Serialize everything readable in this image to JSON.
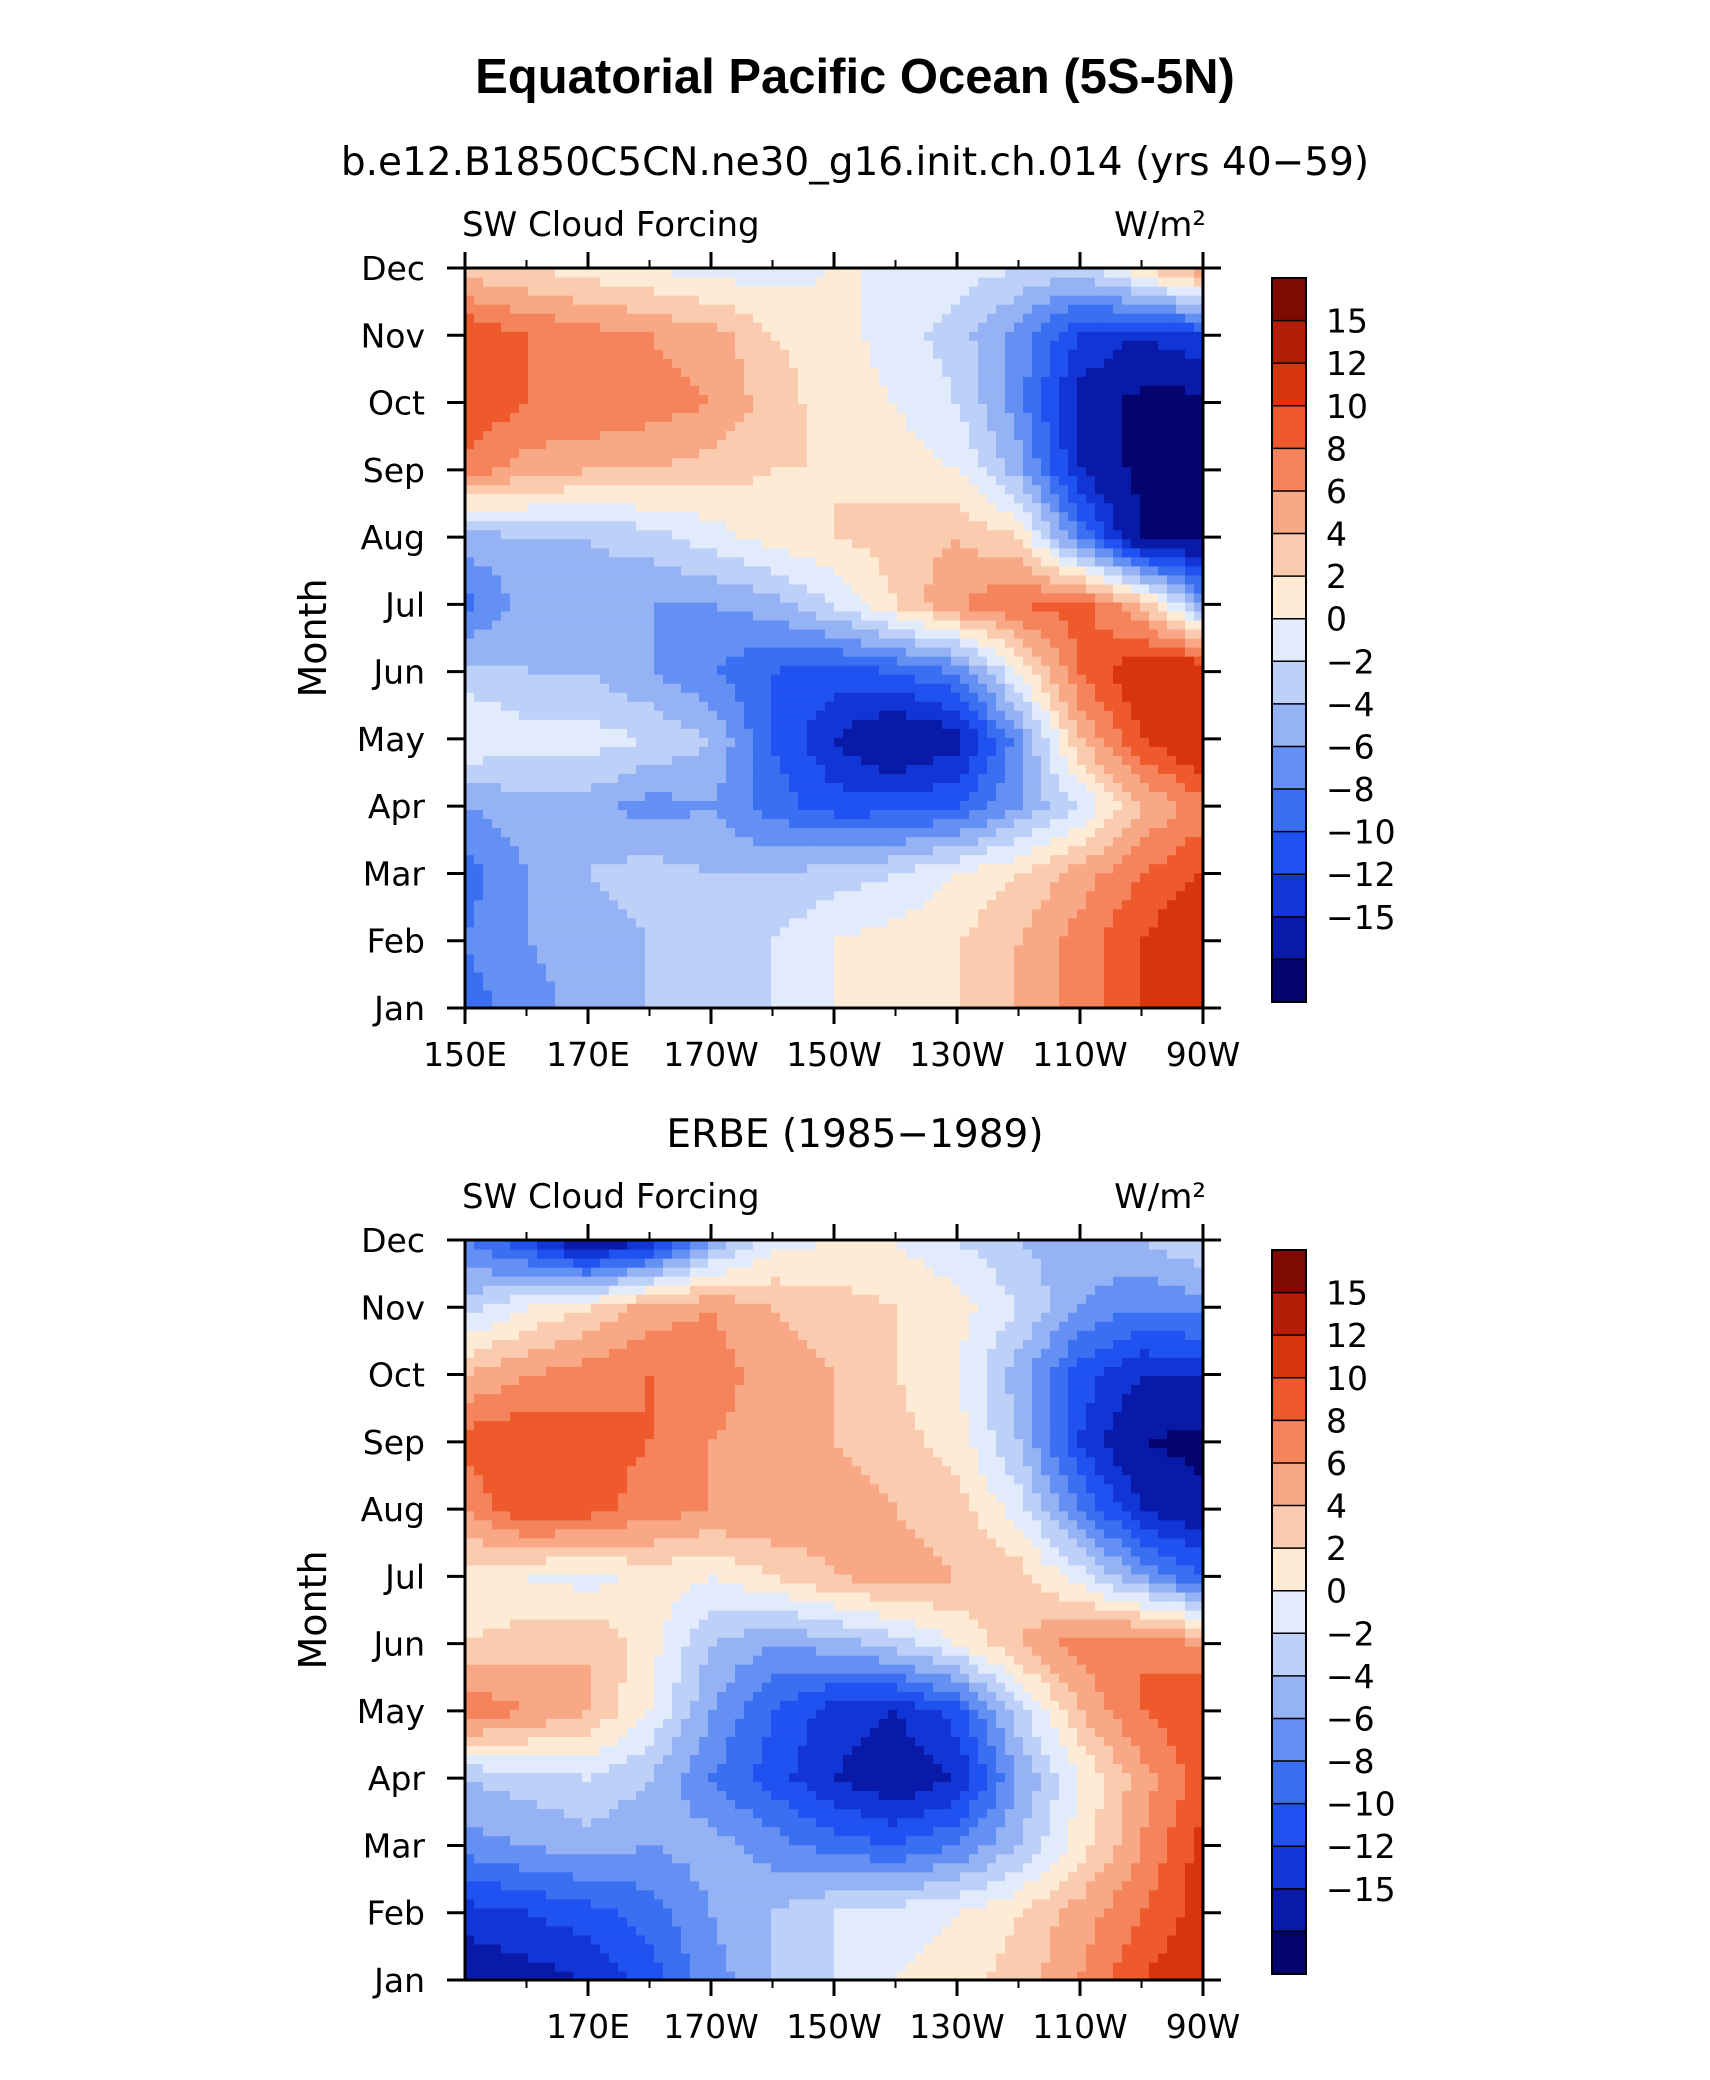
{
  "figure": {
    "title": "Equatorial Pacific Ocean (5S-5N)",
    "top_subtitle": "b.e12.B1850C5CN.ne30_g16.init.ch.014 (yrs 40−59)",
    "bottom_subtitle": "ERBE (1985−1989)"
  },
  "chart_data": [
    {
      "type": "heatmap",
      "name": "model",
      "variable": "SW Cloud Forcing",
      "units": "W/m²",
      "ylabel": "Month",
      "x_ticks": [
        "150E",
        "170E",
        "170W",
        "150W",
        "130W",
        "110W",
        "90W"
      ],
      "x_lon": [
        150,
        170,
        190,
        210,
        230,
        250,
        270
      ],
      "xlim": [
        150,
        270
      ],
      "y_ticks": [
        "Jan",
        "Feb",
        "Mar",
        "Apr",
        "May",
        "Jun",
        "Jul",
        "Aug",
        "Sep",
        "Oct",
        "Nov",
        "Dec"
      ],
      "lon": [
        150,
        160,
        170,
        180,
        190,
        200,
        210,
        220,
        230,
        240,
        250,
        260,
        270
      ],
      "values": [
        [
          -7,
          -5,
          -3,
          -2,
          -1,
          0,
          2,
          3,
          4,
          6,
          9,
          12,
          15
        ],
        [
          -6,
          -4,
          -3,
          -2,
          -1,
          0,
          2,
          3,
          4,
          6,
          9,
          12,
          15
        ],
        [
          -7,
          -4,
          -2,
          -1,
          -2,
          -2,
          -1,
          0,
          2,
          4,
          7,
          10,
          12
        ],
        [
          -4,
          -3,
          -3,
          -5,
          -4,
          -7,
          -9,
          -9,
          -8,
          -4,
          0,
          6,
          9
        ],
        [
          2,
          1,
          1,
          0,
          -2,
          -8,
          -12,
          -15,
          -13,
          -5,
          6,
          12,
          15
        ],
        [
          -1,
          -2,
          -2,
          -4,
          -6,
          -8,
          -9,
          -8,
          -6,
          2,
          10,
          14,
          15
        ],
        [
          -7,
          -3,
          -3,
          -4,
          -4,
          -3,
          0,
          4,
          8,
          10,
          11,
          6,
          -4
        ],
        [
          -3,
          -2,
          -2,
          -1,
          1,
          3,
          4,
          5,
          6,
          4,
          -6,
          -15,
          -15
        ],
        [
          9,
          7,
          6,
          6,
          5,
          4,
          4,
          3,
          2,
          -3,
          -12,
          -16,
          -16
        ],
        [
          12,
          10,
          10,
          9,
          8,
          5,
          3,
          2,
          0,
          -5,
          -13,
          -16,
          -16
        ],
        [
          12,
          10,
          9,
          8,
          7,
          4,
          3,
          1,
          -1,
          -5,
          -10,
          -12,
          -10
        ],
        [
          5,
          4,
          3,
          2,
          1,
          1,
          2,
          2,
          1,
          0,
          -1,
          4,
          8
        ]
      ]
    },
    {
      "type": "heatmap",
      "name": "observed",
      "variable": "SW Cloud Forcing",
      "units": "W/m²",
      "ylabel": "Month",
      "x_ticks": [
        "170E",
        "170W",
        "150W",
        "130W",
        "110W",
        "90W"
      ],
      "x_lon": [
        170,
        190,
        210,
        230,
        250,
        270
      ],
      "xlim": [
        150,
        270
      ],
      "y_ticks": [
        "Jan",
        "Feb",
        "Mar",
        "Apr",
        "May",
        "Jun",
        "Jul",
        "Aug",
        "Sep",
        "Oct",
        "Nov",
        "Dec"
      ],
      "lon": [
        150,
        160,
        170,
        180,
        190,
        200,
        210,
        220,
        230,
        240,
        250,
        260,
        270
      ],
      "values": [
        [
          -14,
          -13,
          -12,
          -9,
          -5,
          -2,
          0,
          2,
          3,
          5,
          8,
          12,
          14
        ],
        [
          -11,
          -10,
          -9,
          -7,
          -4,
          -2,
          0,
          1,
          2,
          4,
          7,
          10,
          13
        ],
        [
          -5,
          -4,
          -3,
          -4,
          -3,
          -5,
          -7,
          -8,
          -6,
          -2,
          3,
          8,
          13
        ],
        [
          -2,
          -1,
          0,
          -2,
          -6,
          -9,
          -12,
          -14,
          -12,
          -4,
          2,
          7,
          11
        ],
        [
          10,
          8,
          6,
          2,
          -4,
          -8,
          -11,
          -12,
          -9,
          -1,
          6,
          10,
          12
        ],
        [
          4,
          5,
          6,
          3,
          -2,
          -4,
          -3,
          -1,
          2,
          6,
          9,
          10,
          8
        ],
        [
          3,
          2,
          1,
          3,
          2,
          4,
          6,
          7,
          6,
          5,
          1,
          -4,
          -8
        ],
        [
          8,
          12,
          11,
          9,
          8,
          8,
          7,
          6,
          5,
          1,
          -6,
          -12,
          -14
        ],
        [
          11,
          12,
          11,
          10,
          8,
          7,
          6,
          5,
          3,
          -2,
          -10,
          -15,
          -16
        ],
        [
          6,
          8,
          9,
          10,
          9,
          7,
          6,
          4,
          2,
          -3,
          -9,
          -12,
          -12
        ],
        [
          -1,
          2,
          4,
          7,
          8,
          6,
          5,
          4,
          3,
          0,
          -4,
          -6,
          -5
        ],
        [
          -6,
          -10,
          -15,
          -12,
          -4,
          1,
          2,
          2,
          0,
          -2,
          -3,
          -2,
          0
        ]
      ]
    }
  ],
  "colorbar": {
    "labels": [
      "15",
      "12",
      "10",
      "8",
      "6",
      "4",
      "2",
      "0",
      "−2",
      "−4",
      "−6",
      "−8",
      "−10",
      "−12",
      "−15"
    ],
    "levels": [
      -15,
      -12,
      -10,
      -8,
      -6,
      -4,
      -2,
      0,
      2,
      4,
      6,
      8,
      10,
      12,
      15
    ],
    "colors": [
      "#04046e",
      "#0a1aa8",
      "#1236d6",
      "#1f52f0",
      "#3b6ff2",
      "#6590f3",
      "#95b2f5",
      "#bdd0f8",
      "#e2ebfb",
      "#fdebd6",
      "#fbcbaf",
      "#f8a884",
      "#f5835b",
      "#ee5a2c",
      "#d8350f",
      "#b41e08",
      "#7f0a04"
    ]
  }
}
